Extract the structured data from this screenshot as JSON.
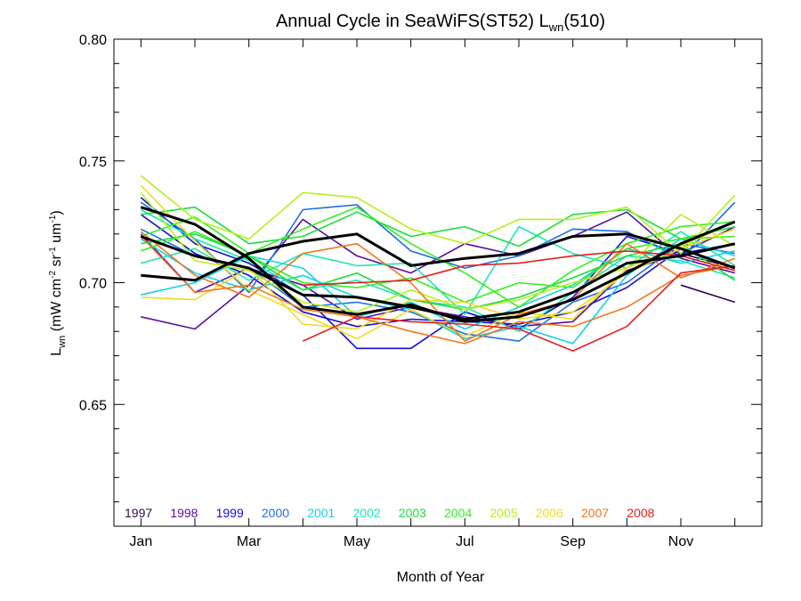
{
  "chart_data": {
    "type": "line",
    "title": "Annual Cycle in SeaWiFS(ST52) L",
    "title_sub": "wn",
    "title_suffix": "(510)",
    "xlabel": "Month of Year",
    "ylabel_parts": [
      "L",
      "wn",
      " (mW cm",
      "-2",
      " sr",
      "-1",
      " um",
      "-1",
      ")"
    ],
    "xlim": [
      0.5,
      12.5
    ],
    "ylim": [
      0.6,
      0.8
    ],
    "x_ticks": [
      {
        "value": 1,
        "label": "Jan"
      },
      {
        "value": 3,
        "label": "Mar"
      },
      {
        "value": 5,
        "label": "May"
      },
      {
        "value": 7,
        "label": "Jul"
      },
      {
        "value": 9,
        "label": "Sep"
      },
      {
        "value": 11,
        "label": "Nov"
      }
    ],
    "y_ticks": [
      {
        "value": 0.65,
        "label": "0.65"
      },
      {
        "value": 0.7,
        "label": "0.70"
      },
      {
        "value": 0.75,
        "label": "0.75"
      },
      {
        "value": 0.8,
        "label": "0.80"
      }
    ],
    "grid": false,
    "legend_position": "bottom-left inside plot",
    "x": [
      1,
      2,
      3,
      4,
      5,
      6,
      7,
      8,
      9,
      10,
      11,
      12
    ],
    "series": [
      {
        "name": "1997",
        "color": "#2e0854",
        "values": [
          null,
          null,
          null,
          null,
          null,
          null,
          null,
          null,
          null,
          null,
          0.699,
          0.692
        ]
      },
      {
        "name": "1997",
        "color": "#2e0854",
        "values": [
          null,
          null,
          null,
          null,
          null,
          null,
          null,
          null,
          null,
          null,
          0.712,
          0.706
        ]
      },
      {
        "name": "1998",
        "color": "#5a0fa0",
        "values": [
          0.686,
          0.681,
          0.699,
          0.726,
          0.711,
          0.704,
          0.716,
          0.711,
          0.719,
          0.729,
          0.71,
          0.704
        ]
      },
      {
        "name": "1998",
        "color": "#5a0fa0",
        "values": [
          0.72,
          0.696,
          0.706,
          0.699,
          0.685,
          0.69,
          0.686,
          0.682,
          0.684,
          0.705,
          0.712,
          0.723
        ]
      },
      {
        "name": "1999",
        "color": "#1010d0",
        "values": [
          0.735,
          0.716,
          0.708,
          0.695,
          0.673,
          0.673,
          0.688,
          0.681,
          0.694,
          0.719,
          0.712,
          0.716
        ]
      },
      {
        "name": "1999",
        "color": "#1010d0",
        "values": [
          0.728,
          0.712,
          0.703,
          0.688,
          0.682,
          0.685,
          0.684,
          0.683,
          0.688,
          0.698,
          0.714,
          0.706
        ]
      },
      {
        "name": "2000",
        "color": "#1e6ee6",
        "values": [
          0.733,
          0.718,
          0.696,
          0.73,
          0.732,
          0.713,
          0.706,
          0.711,
          0.722,
          0.721,
          0.71,
          0.733
        ]
      },
      {
        "name": "2000",
        "color": "#1e6ee6",
        "values": [
          0.722,
          0.711,
          0.706,
          0.69,
          0.692,
          0.688,
          0.679,
          0.676,
          0.692,
          0.7,
          0.716,
          0.712
        ]
      },
      {
        "name": "2001",
        "color": "#14d2e6",
        "values": [
          0.718,
          0.704,
          0.697,
          0.703,
          0.694,
          0.689,
          0.677,
          0.682,
          0.675,
          0.703,
          0.718,
          0.711
        ]
      },
      {
        "name": "2001",
        "color": "#14d2e6",
        "values": [
          0.695,
          0.7,
          0.711,
          0.706,
          0.686,
          0.692,
          0.681,
          0.69,
          0.699,
          0.714,
          0.708,
          0.713
        ]
      },
      {
        "name": "2002",
        "color": "#1ee6b4",
        "values": [
          0.708,
          0.714,
          0.701,
          0.712,
          0.707,
          0.708,
          0.687,
          0.723,
          0.712,
          0.706,
          0.721,
          0.707
        ]
      },
      {
        "name": "2002",
        "color": "#1ee6b4",
        "values": [
          0.73,
          0.718,
          0.709,
          0.697,
          0.701,
          0.693,
          0.69,
          0.68,
          0.696,
          0.711,
          0.709,
          0.702
        ]
      },
      {
        "name": "2003",
        "color": "#1edc3c",
        "values": [
          0.728,
          0.731,
          0.716,
          0.719,
          0.729,
          0.719,
          0.723,
          0.715,
          0.728,
          0.73,
          0.718,
          0.723
        ]
      },
      {
        "name": "2003",
        "color": "#1edc3c",
        "values": [
          0.716,
          0.72,
          0.711,
          0.697,
          0.704,
          0.693,
          0.689,
          0.694,
          0.702,
          0.711,
          0.716,
          0.701
        ]
      },
      {
        "name": "2004",
        "color": "#32f01e",
        "values": [
          0.719,
          0.727,
          0.712,
          0.722,
          0.731,
          0.716,
          0.704,
          0.69,
          0.705,
          0.716,
          0.723,
          0.725
        ]
      },
      {
        "name": "2004",
        "color": "#32f01e",
        "values": [
          0.713,
          0.721,
          0.711,
          0.7,
          0.698,
          0.702,
          0.692,
          0.7,
          0.698,
          0.714,
          0.718,
          0.719
        ]
      },
      {
        "name": "2005",
        "color": "#b4f01e",
        "values": [
          0.744,
          0.726,
          0.718,
          0.737,
          0.735,
          0.722,
          0.716,
          0.726,
          0.726,
          0.731,
          0.712,
          0.736
        ]
      },
      {
        "name": "2005",
        "color": "#b4f01e",
        "values": [
          0.737,
          0.709,
          0.705,
          0.692,
          0.688,
          0.697,
          0.689,
          0.693,
          0.7,
          0.706,
          0.728,
          0.715
        ]
      },
      {
        "name": "2006",
        "color": "#f0dc1e",
        "values": [
          0.694,
          0.693,
          0.706,
          0.683,
          0.681,
          0.693,
          0.692,
          0.685,
          0.688,
          0.704,
          0.714,
          0.722
        ]
      },
      {
        "name": "2006",
        "color": "#f0dc1e",
        "values": [
          0.74,
          0.717,
          0.697,
          0.687,
          0.677,
          0.689,
          0.678,
          0.688,
          0.685,
          0.706,
          0.715,
          0.725
        ]
      },
      {
        "name": "2007",
        "color": "#f0781e",
        "values": [
          0.721,
          0.703,
          0.694,
          0.712,
          0.716,
          0.7,
          0.676,
          0.687,
          0.693,
          0.716,
          0.702,
          0.71
        ]
      },
      {
        "name": "2007",
        "color": "#f0781e",
        "values": [
          0.719,
          0.696,
          0.699,
          0.689,
          0.686,
          0.68,
          0.675,
          0.684,
          0.682,
          0.69,
          0.703,
          0.707
        ]
      },
      {
        "name": "2008",
        "color": "#e61e1e",
        "values": [
          null,
          null,
          null,
          0.676,
          0.686,
          0.684,
          0.683,
          0.681,
          0.672,
          0.682,
          0.704,
          0.707
        ]
      },
      {
        "name": "2008",
        "color": "#e61e1e",
        "values": [
          null,
          null,
          null,
          0.699,
          0.7,
          0.701,
          0.707,
          0.708,
          0.711,
          0.713,
          0.711,
          0.705
        ]
      },
      {
        "name": "",
        "color": "#000000",
        "width": 3,
        "values": [
          0.731,
          0.724,
          0.71,
          0.69,
          0.687,
          0.691,
          0.684,
          0.686,
          0.693,
          0.704,
          0.716,
          0.725
        ]
      },
      {
        "name": "",
        "color": "#000000",
        "width": 3,
        "values": [
          0.719,
          0.711,
          0.706,
          0.695,
          0.694,
          0.69,
          0.685,
          0.688,
          0.696,
          0.708,
          0.711,
          0.716
        ]
      },
      {
        "name": "",
        "color": "#000000",
        "width": 3,
        "values": [
          0.703,
          0.701,
          0.712,
          0.717,
          0.72,
          0.707,
          0.71,
          0.712,
          0.719,
          0.72,
          0.714,
          0.706
        ]
      }
    ],
    "legend": [
      {
        "label": "1997",
        "color": "#2e0854"
      },
      {
        "label": "1998",
        "color": "#5a0fa0"
      },
      {
        "label": "1999",
        "color": "#1010d0"
      },
      {
        "label": "2000",
        "color": "#1e6ee6"
      },
      {
        "label": "2001",
        "color": "#14d2e6"
      },
      {
        "label": "2002",
        "color": "#1ee6b4"
      },
      {
        "label": "2003",
        "color": "#1edc3c"
      },
      {
        "label": "2004",
        "color": "#32f01e"
      },
      {
        "label": "2005",
        "color": "#b4f01e"
      },
      {
        "label": "2006",
        "color": "#f0dc1e"
      },
      {
        "label": "2007",
        "color": "#f0781e"
      },
      {
        "label": "2008",
        "color": "#e61e1e"
      }
    ]
  }
}
